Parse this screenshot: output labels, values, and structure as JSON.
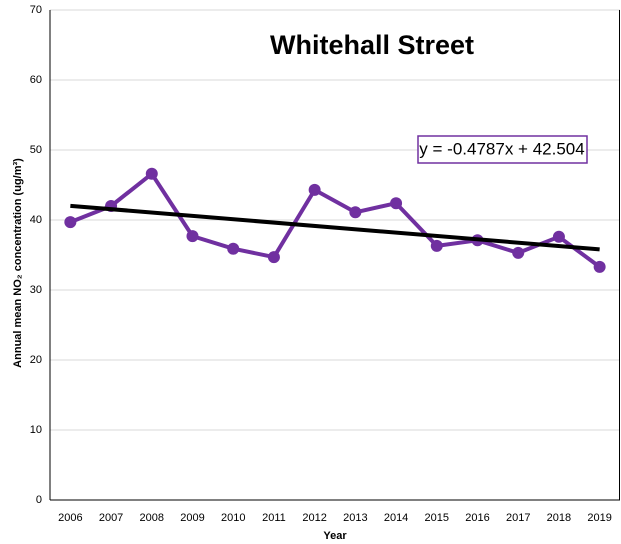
{
  "chart_data": {
    "type": "line",
    "title": "Whitehall Street",
    "x_label": "Year",
    "y_label": "Annual mean NO₂ concentration (ug/m³)",
    "categories": [
      "2006",
      "2007",
      "2008",
      "2009",
      "2010",
      "2011",
      "2012",
      "2013",
      "2014",
      "2015",
      "2016",
      "2017",
      "2018",
      "2019"
    ],
    "series": [
      {
        "name": "Whitehall Street",
        "color": "#7030a0",
        "values": [
          39.7,
          42.0,
          46.6,
          37.7,
          35.9,
          34.7,
          44.3,
          41.1,
          42.4,
          36.3,
          37.1,
          35.3,
          37.6,
          33.3
        ]
      }
    ],
    "trendline": {
      "slope": -0.4787,
      "intercept": 42.504,
      "label": "y = -0.4787x + 42.504",
      "color": "#000000"
    },
    "ylim": [
      0,
      70
    ],
    "yticks": [
      0,
      10,
      20,
      30,
      40,
      50,
      60,
      70
    ],
    "grid": true
  }
}
